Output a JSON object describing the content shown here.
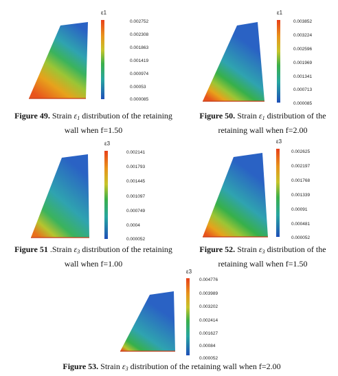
{
  "colors": {
    "top": "#2a62c4",
    "mid": "#37b04a",
    "hot": "#e8541c",
    "edge": "#c43a18"
  },
  "panels": [
    {
      "bar_title": "ε1",
      "ticks": [
        "0.002752",
        "0.002308",
        "0.001863",
        "0.001419",
        "0.000974",
        "0.00053",
        "0.000085"
      ]
    },
    {
      "bar_title": "ε1",
      "ticks": [
        "0.003852",
        "0.003224",
        "0.002596",
        "0.001969",
        "0.001341",
        "0.000713",
        "0.000085"
      ]
    },
    {
      "bar_title": "ε3",
      "ticks": [
        "0.002141",
        "0.001793",
        "0.001445",
        "0.001097",
        "0.000749",
        "0.0004",
        "0.000052"
      ]
    },
    {
      "bar_title": "ε3",
      "ticks": [
        "0.002625",
        "0.002197",
        "0.001768",
        "0.001339",
        "0.00091",
        "0.000481",
        "0.000052"
      ]
    },
    {
      "bar_title": "ε3",
      "ticks": [
        "0.004776",
        "0.003989",
        "0.003202",
        "0.002414",
        "0.001627",
        "0.00084",
        "0.000052"
      ]
    }
  ],
  "captions": [
    {
      "label": "Figure 49.",
      "pre": " Strain ",
      "sym": "ε",
      "sub": "1",
      "line1_post": " distribution of the retaining",
      "line2": "wall when f=1.50"
    },
    {
      "label": "Figure 50.",
      "pre": " Strain ",
      "sym": "ε",
      "sub": "1",
      "line1_post": " distribution of the",
      "line2": "retaining wall when f=2.00"
    },
    {
      "label": "Figure 51",
      "pre": " .Strain ",
      "sym": "ε",
      "sub": "3",
      "line1_post": " distribution of the retaining",
      "line2": "wall when f=1.00"
    },
    {
      "label": "Figure 52.",
      "pre": " Strain ",
      "sym": "ε",
      "sub": "3",
      "line1_post": " distribution of the",
      "line2": "retaining wall when f=1.50"
    },
    {
      "label": "Figure 53.",
      "pre": " Strain ",
      "sym": "ε",
      "sub": "3",
      "line1_post": " distribution of the retaining wall when f=2.00",
      "line2": ""
    }
  ]
}
